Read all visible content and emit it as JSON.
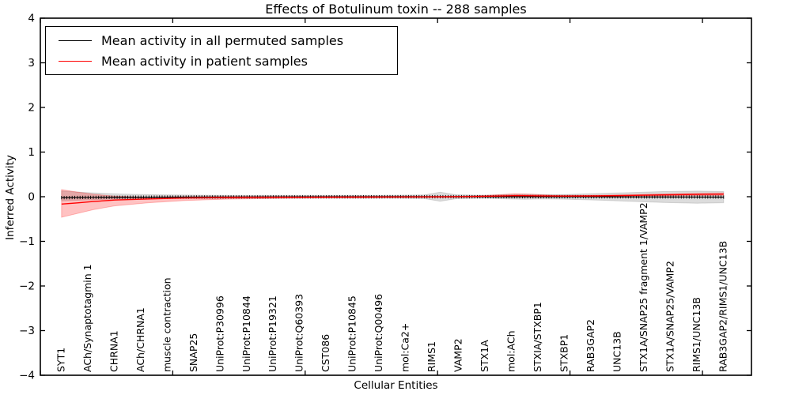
{
  "chart_data": {
    "type": "line",
    "title": "Effects of Botulinum toxin -- 288 samples",
    "xlabel": "Cellular Entities",
    "ylabel": "Inferred Activity",
    "ylim": [
      -4,
      4
    ],
    "xlim": [
      0,
      268.5
    ],
    "ytick_labels": [
      "4",
      "3",
      "2",
      "1",
      "0",
      "−1",
      "−2",
      "−3",
      "−4"
    ],
    "yticks": [
      4,
      3,
      2,
      1,
      0,
      -1,
      -2,
      -3,
      -4
    ],
    "xticks": [
      0,
      50,
      100,
      150,
      200,
      250
    ],
    "grid": false,
    "legend_position": "upper left",
    "entities": [
      "SYT1",
      "ACh/Synaptotagmin 1",
      "CHRNA1",
      "ACh/CHRNA1",
      "muscle contraction",
      "SNAP25",
      "UniProt:P30996",
      "UniProt:P10844",
      "UniProt:P19321",
      "UniProt:Q60393",
      "CST086",
      "UniProt:P10845",
      "UniProt:Q00496",
      "mol:Ca2+",
      "RIMS1",
      "VAMP2",
      "STX1A",
      "mol:ACh",
      "STXIA/STXBP1",
      "STXBP1",
      "RAB3GAP2",
      "UNC13B",
      "STX1A/SNAP25 fragment 1/VAMP2",
      "STX1A/SNAP25/VAMP2",
      "RIMS1/UNC13B",
      "RAB3GAP2/RIMS1/UNC13B"
    ],
    "entity_positions": [
      8,
      18,
      28,
      38,
      48,
      58,
      68,
      78,
      88,
      98,
      108,
      118,
      128,
      138,
      148,
      158,
      168,
      178,
      188,
      198,
      208,
      218,
      228,
      238,
      248,
      258
    ],
    "series": [
      {
        "name": "Mean activity in all permuted samples",
        "color": "#000000",
        "marker": "+",
        "points": [
          [
            8,
            -0.02
          ],
          [
            20,
            -0.015
          ],
          [
            40,
            -0.01
          ],
          [
            80,
            -0.005
          ],
          [
            140,
            0
          ],
          [
            200,
            0
          ],
          [
            230,
            -0.005
          ],
          [
            258,
            -0.008
          ]
        ],
        "band_color": "rgba(130,130,130,0.28)",
        "band_upper": [
          [
            8,
            0.13
          ],
          [
            14,
            0.105
          ],
          [
            20,
            0.085
          ],
          [
            30,
            0.06
          ],
          [
            45,
            0.042
          ],
          [
            70,
            0.032
          ],
          [
            100,
            0.03
          ],
          [
            135,
            0.032
          ],
          [
            145,
            0.04
          ],
          [
            151,
            0.1
          ],
          [
            157,
            0.042
          ],
          [
            168,
            0.032
          ],
          [
            176,
            0.045
          ],
          [
            183,
            0.055
          ],
          [
            190,
            0.045
          ],
          [
            198,
            0.05
          ],
          [
            210,
            0.07
          ],
          [
            222,
            0.09
          ],
          [
            235,
            0.115
          ],
          [
            248,
            0.125
          ],
          [
            258,
            0.115
          ]
        ],
        "band_lower": [
          [
            8,
            -0.095
          ],
          [
            14,
            -0.08
          ],
          [
            20,
            -0.067
          ],
          [
            30,
            -0.052
          ],
          [
            45,
            -0.04
          ],
          [
            70,
            -0.033
          ],
          [
            100,
            -0.031
          ],
          [
            135,
            -0.033
          ],
          [
            145,
            -0.042
          ],
          [
            151,
            -0.1
          ],
          [
            157,
            -0.044
          ],
          [
            168,
            -0.033
          ],
          [
            176,
            -0.048
          ],
          [
            183,
            -0.058
          ],
          [
            190,
            -0.048
          ],
          [
            198,
            -0.055
          ],
          [
            210,
            -0.075
          ],
          [
            222,
            -0.1
          ],
          [
            235,
            -0.13
          ],
          [
            248,
            -0.145
          ],
          [
            258,
            -0.135
          ]
        ]
      },
      {
        "name": "Mean activity in patient samples",
        "color": "#ff0000",
        "marker": "none",
        "points": [
          [
            8,
            -0.165
          ],
          [
            14,
            -0.138
          ],
          [
            20,
            -0.108
          ],
          [
            28,
            -0.075
          ],
          [
            40,
            -0.052
          ],
          [
            55,
            -0.028
          ],
          [
            70,
            -0.018
          ],
          [
            90,
            -0.012
          ],
          [
            120,
            -0.008
          ],
          [
            150,
            -0.004
          ],
          [
            163,
            0.004
          ],
          [
            172,
            0.014
          ],
          [
            180,
            0.024
          ],
          [
            188,
            0.02
          ],
          [
            198,
            0.014
          ],
          [
            210,
            0.018
          ],
          [
            222,
            0.028
          ],
          [
            235,
            0.04
          ],
          [
            247,
            0.05
          ],
          [
            258,
            0.057
          ]
        ],
        "band_color": "rgba(255,0,0,0.24)",
        "band_upper": [
          [
            8,
            0.16
          ],
          [
            14,
            0.105
          ],
          [
            20,
            0.055
          ],
          [
            28,
            0.012
          ],
          [
            40,
            -0.008
          ],
          [
            55,
            0.002
          ],
          [
            70,
            0.006
          ],
          [
            100,
            0.008
          ],
          [
            140,
            0.008
          ],
          [
            160,
            0.015
          ],
          [
            170,
            0.035
          ],
          [
            179,
            0.065
          ],
          [
            186,
            0.055
          ],
          [
            194,
            0.032
          ],
          [
            205,
            0.03
          ],
          [
            218,
            0.04
          ],
          [
            232,
            0.06
          ],
          [
            245,
            0.075
          ],
          [
            258,
            0.085
          ]
        ],
        "band_lower": [
          [
            8,
            -0.46
          ],
          [
            14,
            -0.375
          ],
          [
            20,
            -0.29
          ],
          [
            28,
            -0.205
          ],
          [
            41,
            -0.135
          ],
          [
            55,
            -0.085
          ],
          [
            70,
            -0.055
          ],
          [
            90,
            -0.038
          ],
          [
            110,
            -0.025
          ],
          [
            135,
            -0.018
          ],
          [
            155,
            -0.012
          ],
          [
            165,
            -0.008
          ],
          [
            172,
            -0.006
          ],
          [
            180,
            -0.005
          ],
          [
            190,
            -0.008
          ],
          [
            200,
            0
          ],
          [
            212,
            0.006
          ],
          [
            225,
            0.012
          ],
          [
            240,
            0.02
          ],
          [
            250,
            0.026
          ],
          [
            258,
            0.03
          ]
        ]
      }
    ],
    "marker_index_start": 8,
    "marker_index_end": 258,
    "marker_index_step": 1
  },
  "colors": {
    "axis": "#000000",
    "background": "#ffffff",
    "permuted_line": "#000000",
    "patient_line": "#ff0000"
  }
}
